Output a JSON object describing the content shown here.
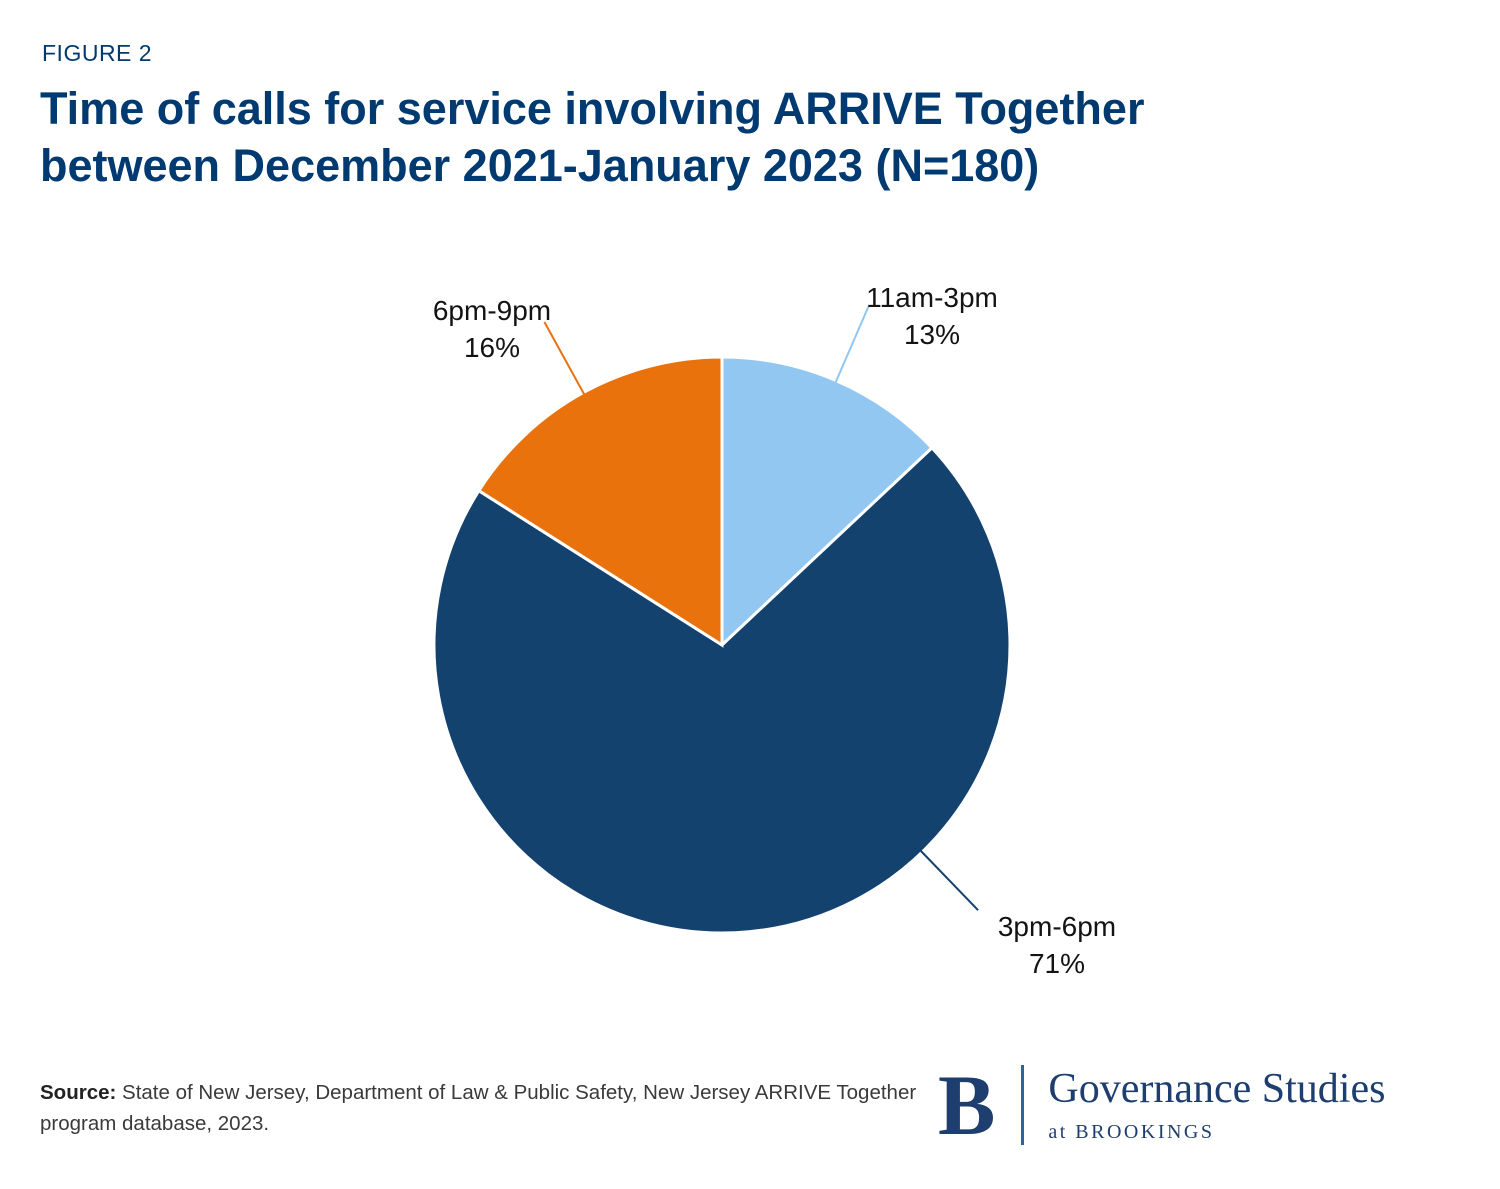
{
  "figure_label": "FIGURE 2",
  "title": "Time of calls for service involving ARRIVE Together between December 2021-January 2023 (N=180)",
  "chart_data": {
    "type": "pie",
    "title": "Time of calls for service involving ARRIVE Together between December 2021-January 2023 (N=180)",
    "total_n": 180,
    "categories": [
      "11am-3pm",
      "3pm-6pm",
      "6pm-9pm"
    ],
    "values": [
      13,
      71,
      16
    ],
    "pct_labels": [
      "13%",
      "71%",
      "16%"
    ],
    "colors": [
      "#92c7f2",
      "#14426f",
      "#ea720d"
    ],
    "start_angle_deg": 0,
    "clockwise": true,
    "label_angles_deg": [
      23.4,
      136,
      331.2
    ],
    "legend": "none",
    "labels_position": "outside-with-leader-lines"
  },
  "source": {
    "label": "Source:",
    "text": " State of New Jersey, Department of Law & Public Safety, New Jersey ARRIVE Together program database, 2023."
  },
  "branding": {
    "logo_letter": "B",
    "org": "Governance Studies",
    "suborg": "at BROOKINGS"
  },
  "colors": {
    "title_navy": "#003a70",
    "pie_navy": "#14426f",
    "pie_light_blue": "#92c7f2",
    "pie_orange": "#ea720d",
    "brand_navy": "#1d3e6e",
    "label_text": "#131313",
    "source_text": "#3a3a3a"
  }
}
